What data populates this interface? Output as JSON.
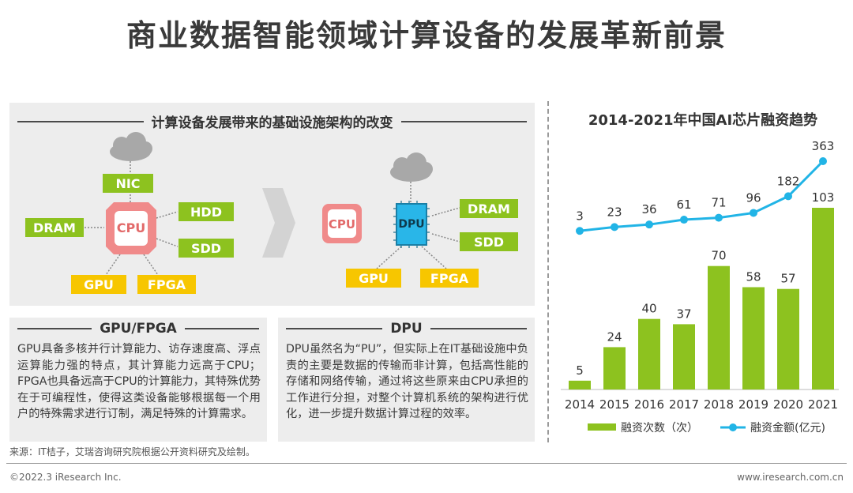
{
  "title": "商业数据智能领域计算设备的发展革新前景",
  "architecture": {
    "heading": "计算设备发展带来的基础设施架构的改变",
    "before": {
      "center": "CPU",
      "nodes": [
        "NIC",
        "DRAM",
        "HDD",
        "SDD",
        "GPU",
        "FPGA"
      ]
    },
    "after": {
      "cpu": "CPU",
      "center": "DPU",
      "nodes": [
        "DRAM",
        "SDD",
        "GPU",
        "FPGA"
      ]
    }
  },
  "gpu_fpga": {
    "heading": "GPU/FPGA",
    "text": "GPU具备多核并行计算能力、访存速度高、浮点运算能力强的特点，其计算能力远高于CPU；FPGA也具备远高于CPU的计算能力，其特殊优势在于可编程性，使得这类设备能够根据每一个用户的特殊需求进行订制，满足特殊的计算需求。"
  },
  "dpu": {
    "heading": "DPU",
    "text": "DPU虽然名为“PU”，但实际上在IT基础设施中负责的主要是数据的传输而非计算，包括高性能的存储和网络传输，通过将这些原来由CPU承担的工作进行分担，对整个计算机系统的架构进行优化，进一步提升数据计算过程的效率。"
  },
  "chart_data": {
    "type": "bar+line",
    "title": "2014-2021年中国AI芯片融资趋势",
    "categories": [
      "2014",
      "2015",
      "2016",
      "2017",
      "2018",
      "2019",
      "2020",
      "2021"
    ],
    "series": [
      {
        "name": "融资次数（次）",
        "type": "bar",
        "values": [
          5,
          24,
          40,
          37,
          70,
          58,
          57,
          103
        ]
      },
      {
        "name": "融资金额(亿元)",
        "type": "line",
        "values": [
          3,
          23,
          36,
          61,
          71,
          96,
          182,
          363
        ]
      }
    ],
    "colors": {
      "bar": "#8dc21f",
      "line": "#21b4e6"
    },
    "legend": "bottom"
  },
  "source": "来源：IT桔子，艾瑞咨询研究院根据公开资料研究及绘制。",
  "footer": {
    "copyright": "©2022.3 iResearch Inc.",
    "url": "www.iresearch.com.cn"
  },
  "colors": {
    "green": "#8dc21f",
    "yellow": "#f7c600",
    "cpu_red": "#f08080",
    "dpu_blue": "#29b6e8"
  }
}
